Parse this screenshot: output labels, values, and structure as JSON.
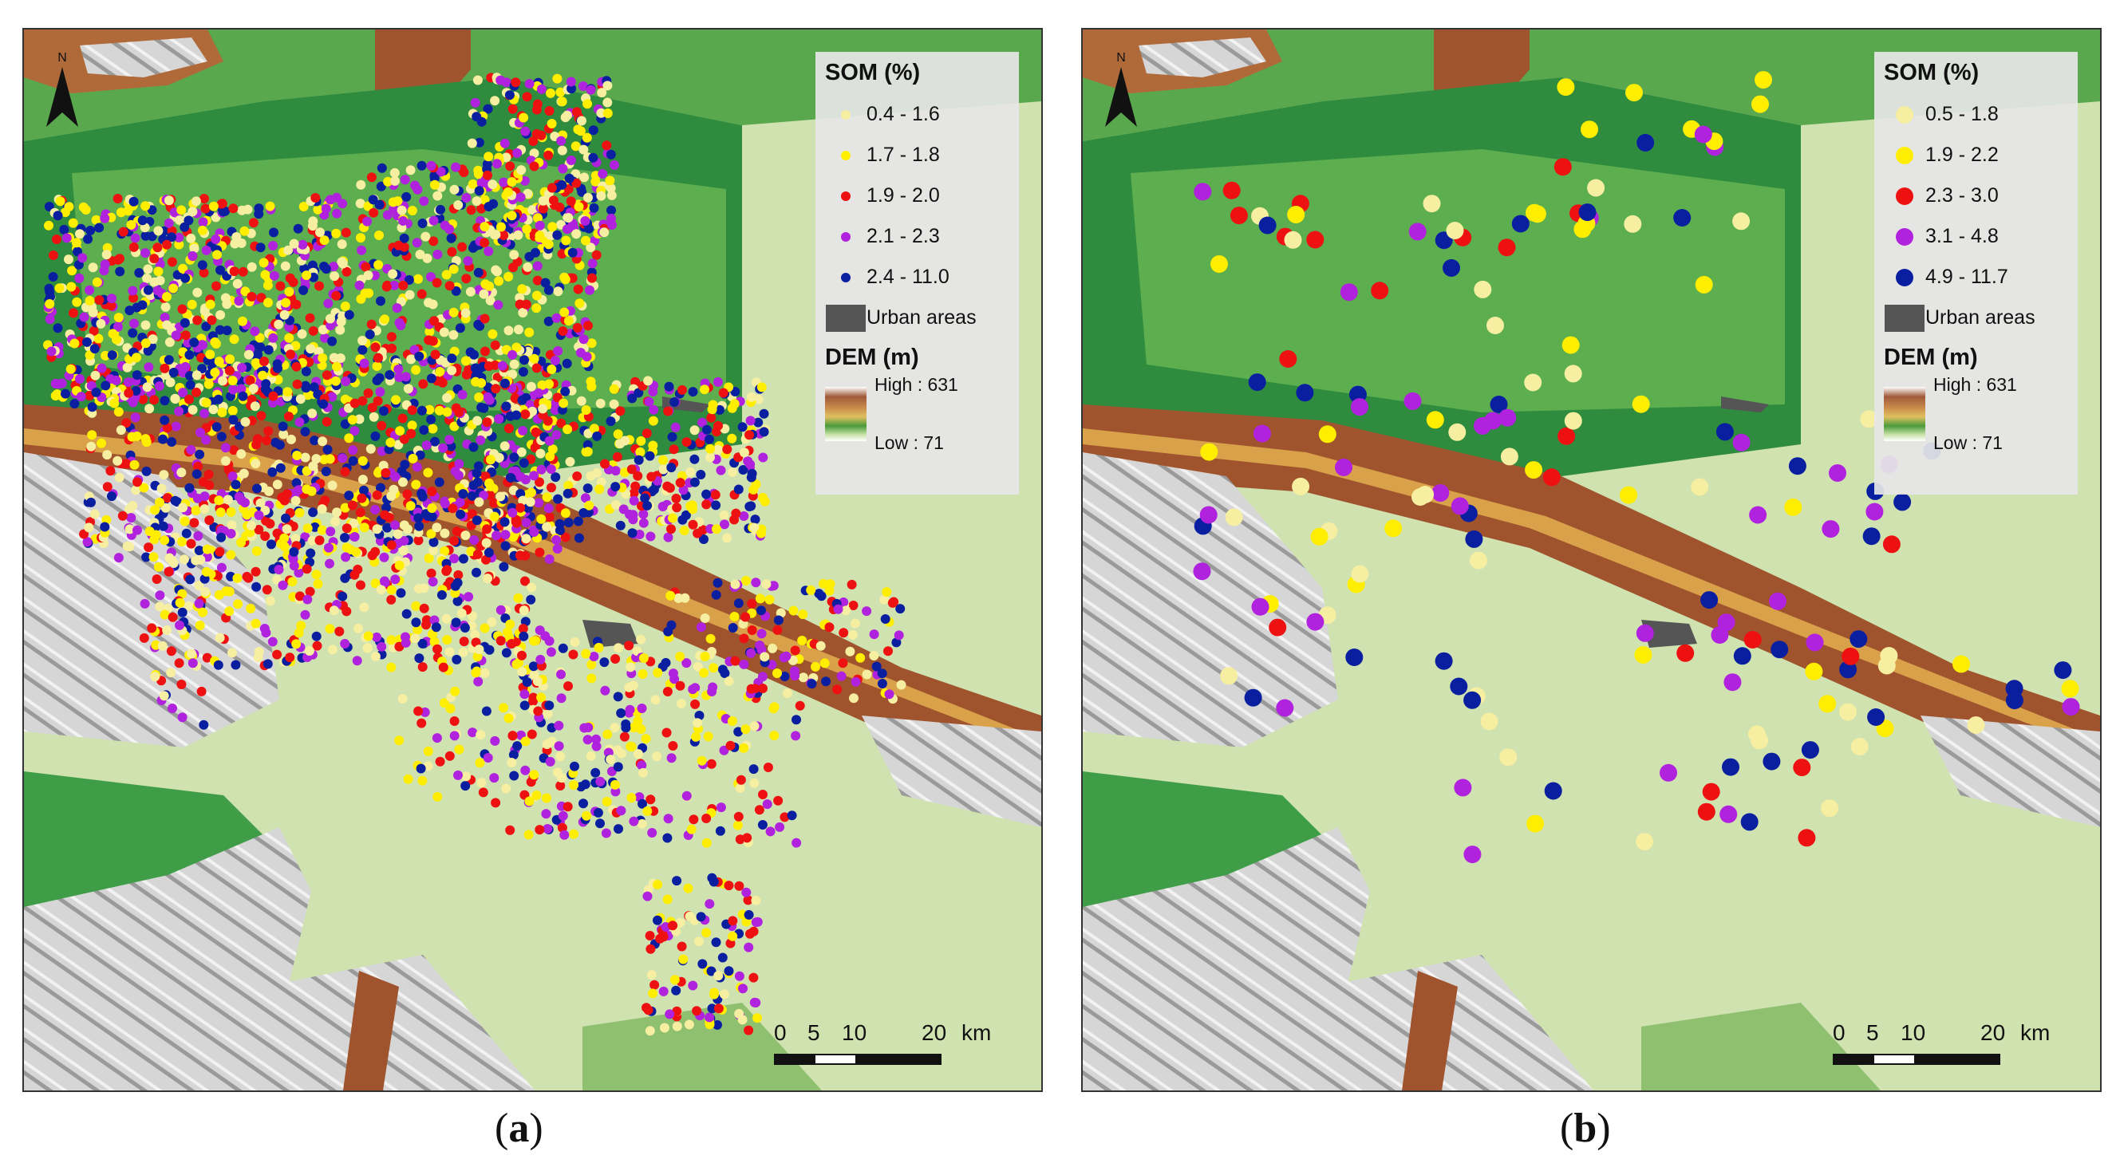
{
  "panels": [
    {
      "id": "a",
      "caption_letter": "a",
      "legend": {
        "title": "SOM (%)",
        "classes": [
          {
            "label": "0.4 - 1.6",
            "color": "#f6eea0"
          },
          {
            "label": "1.7 - 1.8",
            "color": "#ffee00"
          },
          {
            "label": "1.9 - 2.0",
            "color": "#ee1111"
          },
          {
            "label": "2.1 - 2.3",
            "color": "#b022dd"
          },
          {
            "label": "2.4 - 11.0",
            "color": "#0a1fa0"
          }
        ],
        "urban_label": "Urban areas",
        "dem_title": "DEM (m)",
        "dem_high": "High : 631",
        "dem_low": "Low : 71"
      },
      "scale": {
        "ticks": [
          "0",
          "5",
          "10",
          "20"
        ],
        "unit": "km"
      }
    },
    {
      "id": "b",
      "caption_letter": "b",
      "legend": {
        "title": "SOM (%)",
        "classes": [
          {
            "label": "0.5 - 1.8",
            "color": "#f6eea0"
          },
          {
            "label": "1.9 - 2.2",
            "color": "#ffee00"
          },
          {
            "label": "2.3 - 3.0",
            "color": "#ee1111"
          },
          {
            "label": "3.1 - 4.8",
            "color": "#b022dd"
          },
          {
            "label": "4.9 - 11.7",
            "color": "#0a1fa0"
          }
        ],
        "urban_label": "Urban areas",
        "dem_title": "DEM (m)",
        "dem_high": "High : 631",
        "dem_low": "Low : 71"
      },
      "scale": {
        "ticks": [
          "0",
          "5",
          "10",
          "20"
        ],
        "unit": "km"
      }
    }
  ],
  "colors": {
    "valley_light": "#cfe2b0",
    "lowland_green": "#3d9a45",
    "ridge_brown": "#a0542e",
    "hills_grey": "#d8d8d8",
    "urban": "#555555"
  }
}
